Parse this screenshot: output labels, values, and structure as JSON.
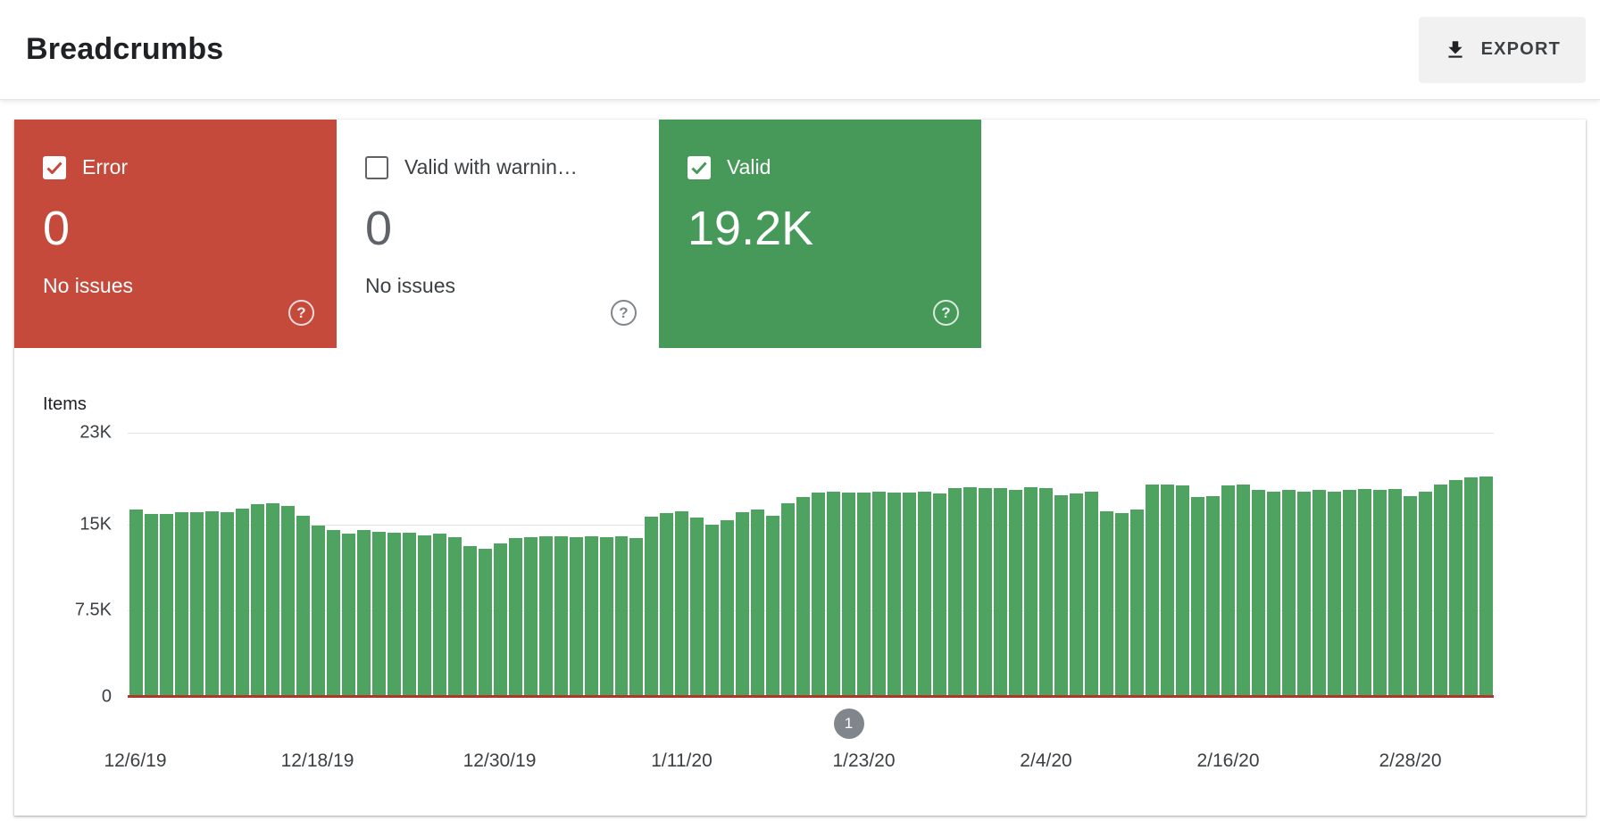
{
  "header": {
    "title": "Breadcrumbs",
    "export_label": "EXPORT"
  },
  "misc": {
    "help_glyph": "?"
  },
  "colors": {
    "error_red": "#c54a3c",
    "valid_green": "#47995a",
    "bar_green": "#4fa361",
    "baseline_red": "#b1362b",
    "grid_line": "#e3e3e3",
    "export_bg": "#f1f1f1"
  },
  "cards": [
    {
      "id": "error",
      "label": "Error",
      "value": "0",
      "sub": "No issues",
      "checked": true
    },
    {
      "id": "valid-with-warnings",
      "label": "Valid with warnin…",
      "value": "0",
      "sub": "No issues",
      "checked": false
    },
    {
      "id": "valid",
      "label": "Valid",
      "value": "19.2K",
      "sub": "",
      "checked": true
    }
  ],
  "chart_data": {
    "type": "bar",
    "title": "Items",
    "ylabel": "Items",
    "xlabel": "",
    "ylim": [
      0,
      23000
    ],
    "grid": true,
    "legend": "none",
    "yticks": [
      {
        "label": "0",
        "value": 0
      },
      {
        "label": "7.5K",
        "value": 7500
      },
      {
        "label": "15K",
        "value": 15000
      },
      {
        "label": "23K",
        "value": 23000
      }
    ],
    "x_tick_labels": [
      {
        "label": "12/6/19",
        "index": 0
      },
      {
        "label": "12/18/19",
        "index": 12
      },
      {
        "label": "12/30/19",
        "index": 24
      },
      {
        "label": "1/11/20",
        "index": 36
      },
      {
        "label": "1/23/20",
        "index": 48
      },
      {
        "label": "2/4/20",
        "index": 60
      },
      {
        "label": "2/16/20",
        "index": 72
      },
      {
        "label": "2/28/20",
        "index": 84
      }
    ],
    "series": [
      {
        "name": "Valid",
        "values": [
          16300,
          15900,
          15900,
          16100,
          16100,
          16200,
          16100,
          16400,
          16800,
          16900,
          16600,
          15800,
          14900,
          14500,
          14200,
          14500,
          14400,
          14300,
          14300,
          14100,
          14200,
          13900,
          13100,
          12900,
          13400,
          13800,
          13900,
          14000,
          14000,
          13900,
          14000,
          13900,
          14000,
          13800,
          15700,
          16000,
          16200,
          15600,
          15000,
          15400,
          16100,
          16300,
          15800,
          16900,
          17400,
          17800,
          17900,
          17800,
          17800,
          17900,
          17800,
          17800,
          17900,
          17700,
          18200,
          18300,
          18200,
          18200,
          18000,
          18300,
          18200,
          17600,
          17700,
          17900,
          16200,
          16000,
          16300,
          18500,
          18500,
          18400,
          17400,
          17500,
          18400,
          18500,
          18000,
          17900,
          18000,
          17900,
          18000,
          17900,
          18000,
          18100,
          18000,
          18100,
          17500,
          17900,
          18500,
          18900,
          19100,
          19200
        ]
      }
    ],
    "annotation": {
      "label": "1",
      "index": 47
    }
  }
}
